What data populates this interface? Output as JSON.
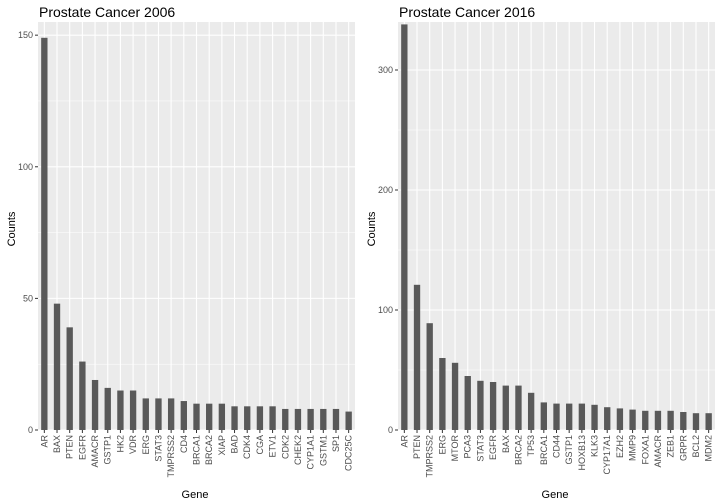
{
  "chart_data": [
    {
      "type": "bar",
      "title": "Prostate Cancer 2006",
      "xlabel": "Gene",
      "ylabel": "Counts",
      "ylim": [
        0,
        155
      ],
      "yticks": [
        0,
        50,
        100,
        150
      ],
      "grid": true,
      "legend": "none",
      "colors": {
        "panel": "#EBEBEB",
        "grid": "#FFFFFF",
        "bar": "#595959"
      },
      "categories": [
        "AR",
        "BAX",
        "PTEN",
        "EGFR",
        "AMACR",
        "GSTP1",
        "HK2",
        "VDR",
        "ERG",
        "STAT3",
        "TMPRSS2",
        "CD4",
        "BRCA1",
        "BRCA2",
        "XIAP",
        "BAD",
        "CDK4",
        "CGA",
        "ETV1",
        "CDK2",
        "CHEK2",
        "CYP1A1",
        "GSTM1",
        "SP1",
        "CDC25C"
      ],
      "values": [
        149,
        48,
        39,
        26,
        19,
        16,
        15,
        15,
        12,
        12,
        12,
        11,
        10,
        10,
        10,
        9,
        9,
        9,
        9,
        8,
        8,
        8,
        8,
        8,
        7
      ]
    },
    {
      "type": "bar",
      "title": "Prostate Cancer 2016",
      "xlabel": "Gene",
      "ylabel": "Counts",
      "ylim": [
        0,
        340
      ],
      "yticks": [
        0,
        100,
        200,
        300
      ],
      "grid": true,
      "legend": "none",
      "colors": {
        "panel": "#EBEBEB",
        "grid": "#FFFFFF",
        "bar": "#595959"
      },
      "categories": [
        "AR",
        "PTEN",
        "TMPRSS2",
        "ERG",
        "MTOR",
        "PCA3",
        "STAT3",
        "EGFR",
        "BAX",
        "BRCA2",
        "TP53",
        "BRCA1",
        "CD44",
        "GSTP1",
        "HOXB13",
        "KLK3",
        "CYP17A1",
        "EZH2",
        "MMP9",
        "FOXA1",
        "AMACR",
        "ZEB1",
        "GRPR",
        "BCL2",
        "MDM2"
      ],
      "values": [
        338,
        121,
        89,
        60,
        56,
        45,
        41,
        40,
        37,
        37,
        31,
        23,
        22,
        22,
        22,
        21,
        19,
        18,
        17,
        16,
        16,
        16,
        15,
        14,
        14
      ]
    }
  ]
}
